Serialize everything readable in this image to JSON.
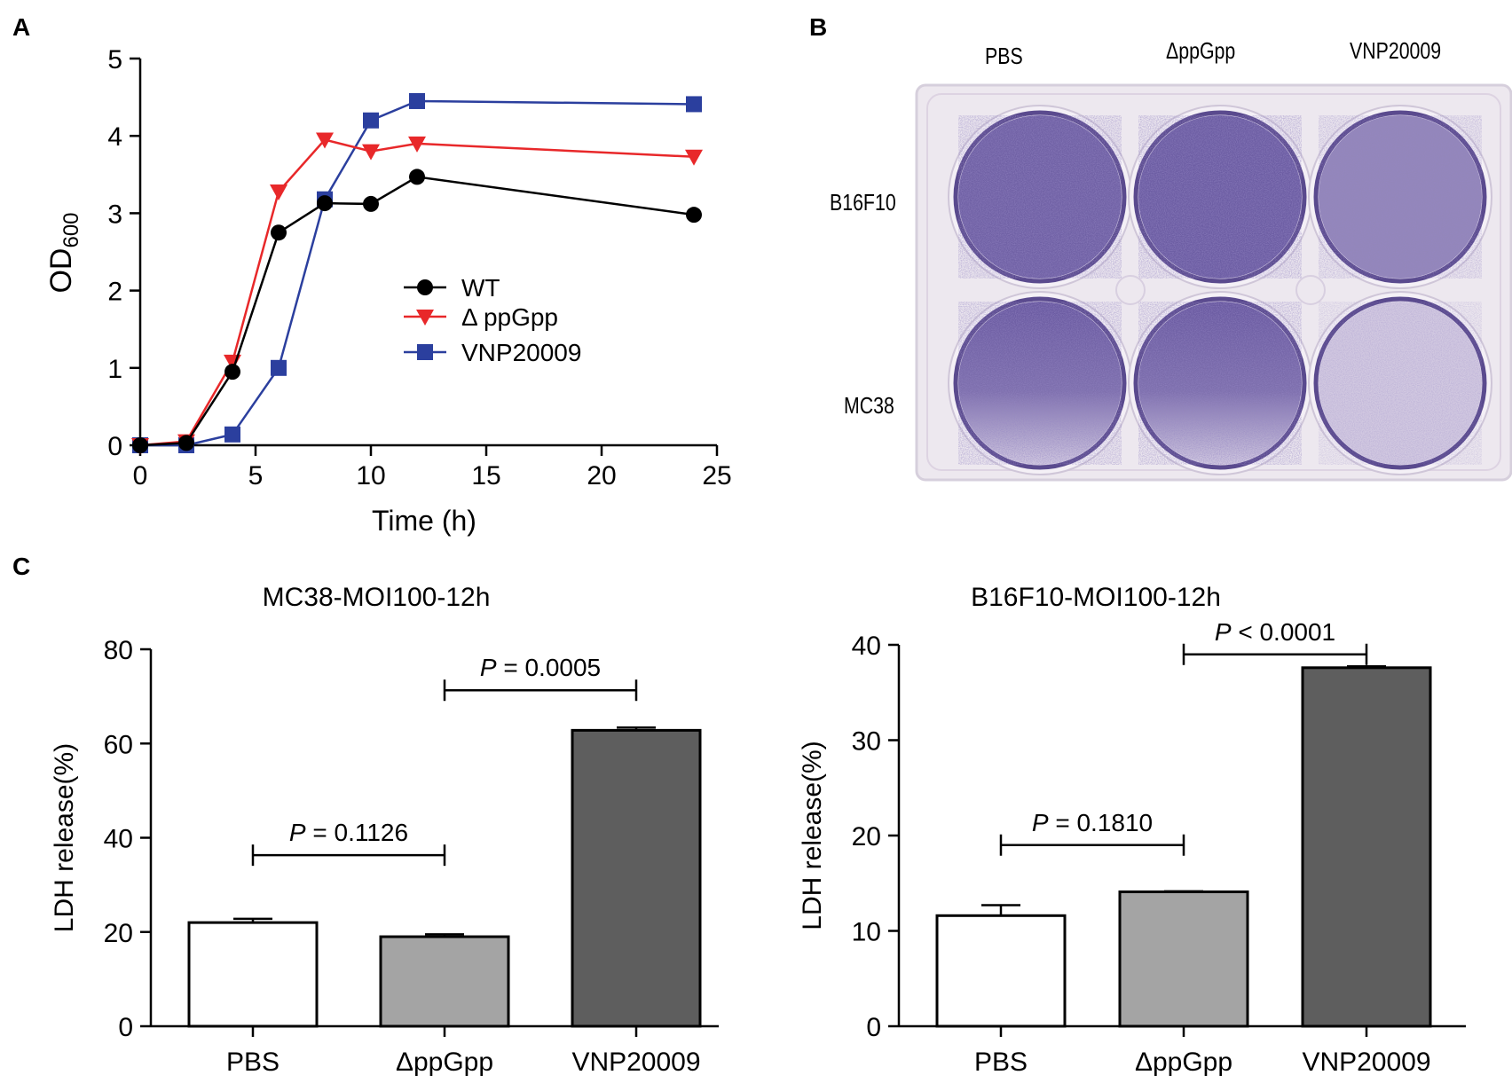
{
  "panel_labels": {
    "a": "A",
    "b": "B",
    "c": "C"
  },
  "colors": {
    "wt": "#000000",
    "ppgpp": "#e8282a",
    "vnp": "#2b3f9e",
    "bar_pbs": "#ffffff",
    "bar_ppgpp": "#a4a4a4",
    "bar_vnp": "#5e5e5e",
    "stain": "#5b4a98",
    "plate": "#ece7ef"
  },
  "chart_data": [
    {
      "id": "A",
      "type": "line",
      "title": "",
      "xlabel": "Time (h)",
      "ylabel_main": "OD",
      "ylabel_sub": "600",
      "xlim": [
        0,
        25
      ],
      "ylim": [
        0,
        5
      ],
      "xticks": [
        "0",
        "5",
        "10",
        "15",
        "20",
        "25"
      ],
      "yticks": [
        "0",
        "1",
        "2",
        "3",
        "4",
        "5"
      ],
      "legend_position": "center-right",
      "series": [
        {
          "name": "WT",
          "marker": "circle",
          "x": [
            0,
            2,
            4,
            6,
            8,
            10,
            12,
            24
          ],
          "y": [
            0,
            0.03,
            0.95,
            2.75,
            3.13,
            3.12,
            3.47,
            2.98
          ]
        },
        {
          "name": "Δ ppGpp",
          "marker": "triangle-down",
          "x": [
            0,
            2,
            4,
            6,
            8,
            10,
            12,
            24
          ],
          "y": [
            0,
            0.05,
            1.08,
            3.28,
            3.95,
            3.8,
            3.9,
            3.73
          ]
        },
        {
          "name": "VNP20009",
          "marker": "square",
          "x": [
            0,
            2,
            4,
            6,
            8,
            10,
            12,
            24
          ],
          "y": [
            0,
            0,
            0.14,
            1.0,
            3.18,
            4.2,
            4.45,
            4.41
          ]
        }
      ]
    },
    {
      "id": "C-left",
      "type": "bar",
      "title": "MC38-MOI100-12h",
      "ylabel": "LDH release(%)",
      "ylim": [
        0,
        80
      ],
      "yticks": [
        "0",
        "20",
        "40",
        "60",
        "80"
      ],
      "categories": [
        "PBS",
        "ΔppGpp",
        "VNP20009"
      ],
      "values": [
        22,
        19,
        62.8
      ],
      "errors": [
        0.8,
        0.5,
        0.6
      ],
      "comparisons": [
        {
          "from": 0,
          "to": 1,
          "y": 36.3,
          "p_symbol": "P",
          "p_text": " = 0.1126"
        },
        {
          "from": 1,
          "to": 2,
          "y": 71.3,
          "p_symbol": "P",
          "p_text": " = 0.0005"
        }
      ]
    },
    {
      "id": "C-right",
      "type": "bar",
      "title": "B16F10-MOI100-12h",
      "ylabel": "LDH release(%)",
      "ylim": [
        0,
        40
      ],
      "yticks": [
        "0",
        "10",
        "20",
        "30",
        "40"
      ],
      "categories": [
        "PBS",
        "ΔppGpp",
        "VNP20009"
      ],
      "values": [
        11.6,
        14.1,
        37.6
      ],
      "errors": [
        1.1,
        0.05,
        0.15
      ],
      "comparisons": [
        {
          "from": 0,
          "to": 1,
          "y": 19.0,
          "p_symbol": "P",
          "p_text": " = 0.1810"
        },
        {
          "from": 1,
          "to": 2,
          "y": 39.0,
          "p_symbol": "P",
          "p_text": " < 0.0001"
        }
      ]
    }
  ],
  "plate": {
    "columns": [
      "PBS",
      "ΔppGpp",
      "VNP20009"
    ],
    "rows": [
      "B16F10",
      "MC38"
    ],
    "stain_level": [
      [
        0.85,
        0.88,
        0.6
      ],
      [
        0.8,
        0.78,
        0.15
      ]
    ]
  }
}
